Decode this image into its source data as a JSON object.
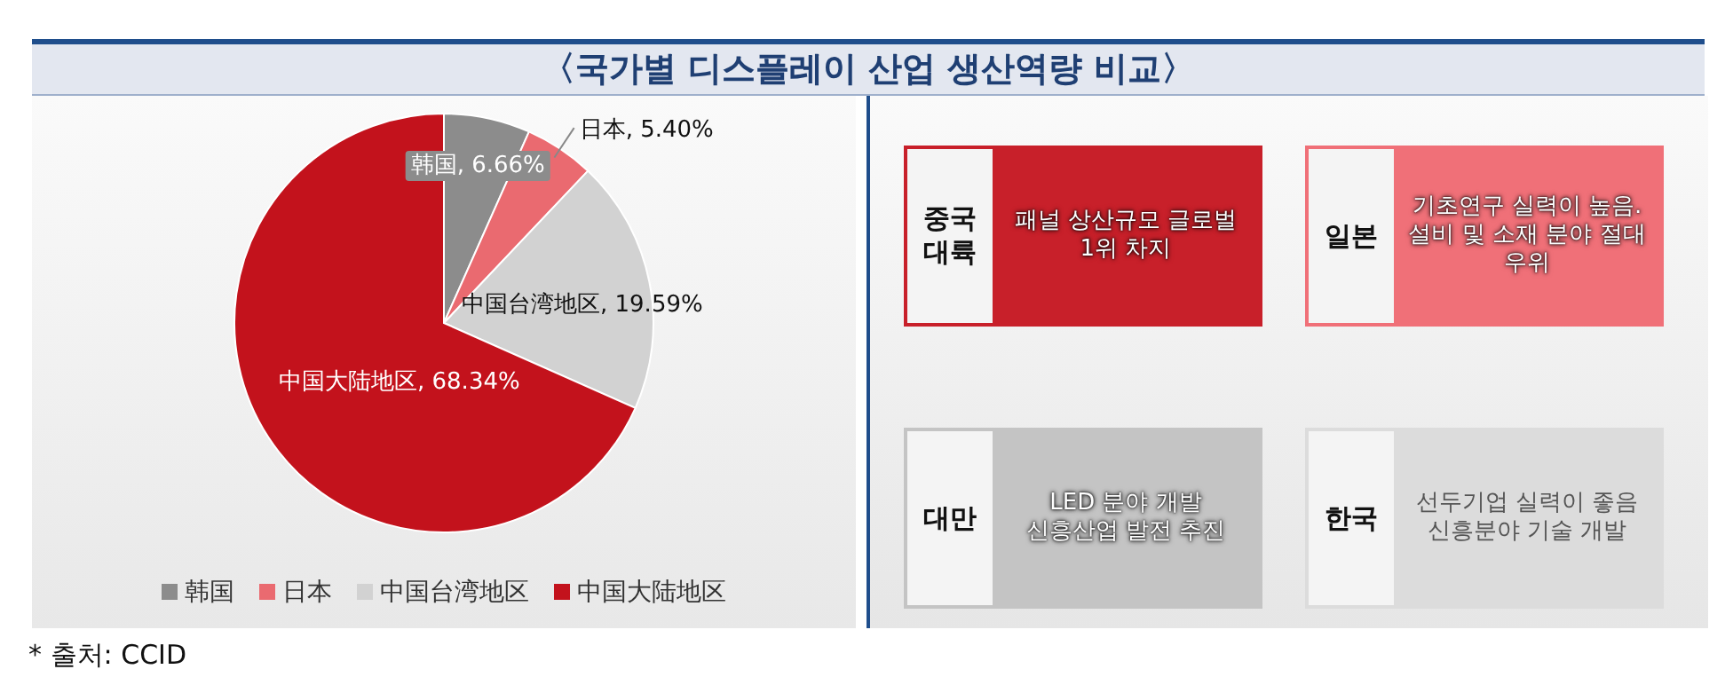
{
  "chart_data": [
    {
      "type": "pie",
      "title": "〈국가별 디스플레이 산업 생산역량 비교〉",
      "categories": [
        "韩国",
        "日本",
        "中国台湾地区",
        "中国大陆地区"
      ],
      "values": [
        6.66,
        5.4,
        19.59,
        68.34
      ],
      "colors": [
        "#8c8c8c",
        "#ea6a70",
        "#d2d2d2",
        "#c3121c"
      ],
      "value_labels": [
        "韩国, 6.66%",
        "日本, 5.40%",
        "中国台湾地区, 19.59%",
        "中国大陆地区, 68.34%"
      ],
      "legend": "bottom",
      "annotations": [
        "* 출처: CCID"
      ]
    },
    {
      "type": "other",
      "annotations": [
        "중국 대륙",
        "일본",
        "대만",
        "한국"
      ],
      "categories": [
        "패널 상산규모 글로벌 1위 차지",
        "기초연구 실력이 높음. 설비 및 소재 분야 절대 우위",
        "LED 분야 개발 신흥산업 발전 추진",
        "선두기업 실력이 좋음 신흥분야 기술 개발"
      ],
      "colors": [
        "#c8202a",
        "#f07078",
        "#c4c4c4",
        "#dcdcdc"
      ]
    }
  ]
}
